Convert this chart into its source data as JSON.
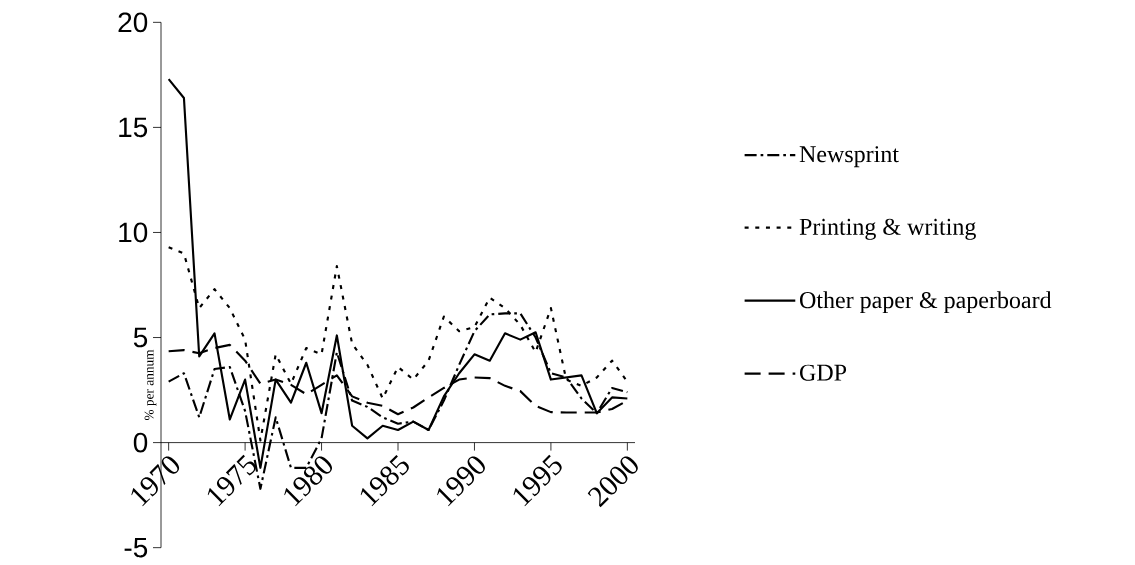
{
  "chart_data": {
    "type": "line",
    "ylabel": "% per annum",
    "x": [
      1970,
      1971,
      1972,
      1973,
      1974,
      1975,
      1976,
      1977,
      1978,
      1979,
      1980,
      1981,
      1982,
      1983,
      1984,
      1985,
      1986,
      1987,
      1988,
      1989,
      1990,
      1991,
      1992,
      1993,
      1994,
      1995,
      1996,
      1997,
      1998,
      1999,
      2000
    ],
    "series": [
      {
        "name": "Newsprint",
        "color": "#000000",
        "line_style": "dashdot",
        "values": [
          2.9,
          3.3,
          1.2,
          3.5,
          3.6,
          1.5,
          -2.2,
          1.2,
          -1.2,
          -1.2,
          0.2,
          4.3,
          2.0,
          1.7,
          1.2,
          0.9,
          1.0,
          0.6,
          2.0,
          3.7,
          5.3,
          6.1,
          6.15,
          6.15,
          5.0,
          3.3,
          3.1,
          2.1,
          1.4,
          2.6,
          2.4
        ]
      },
      {
        "name": "Printing & writing",
        "color": "#000000",
        "line_style": "dotted",
        "values": [
          9.3,
          9.0,
          6.4,
          7.3,
          6.4,
          4.9,
          0.1,
          4.2,
          2.8,
          4.5,
          4.2,
          8.4,
          4.7,
          3.7,
          2.1,
          3.6,
          3.0,
          3.9,
          6.0,
          5.3,
          5.5,
          6.9,
          6.4,
          5.6,
          4.3,
          6.4,
          3.0,
          2.7,
          3.1,
          3.9,
          2.9
        ]
      },
      {
        "name": "Other paper & paperboard",
        "color": "#000000",
        "line_style": "solid",
        "values": [
          17.3,
          16.4,
          4.1,
          5.2,
          1.1,
          3.0,
          -1.2,
          3.0,
          1.9,
          3.8,
          1.4,
          5.1,
          0.8,
          0.2,
          0.8,
          0.6,
          1.0,
          0.6,
          2.2,
          3.3,
          4.2,
          3.9,
          5.2,
          4.9,
          5.25,
          3.0,
          3.1,
          3.2,
          1.4,
          2.15,
          2.1
        ]
      },
      {
        "name": "GDP",
        "color": "#000000",
        "line_style": "dashed",
        "values": [
          4.35,
          4.4,
          4.25,
          4.5,
          4.65,
          3.9,
          2.8,
          3.0,
          2.75,
          2.3,
          2.75,
          3.2,
          2.2,
          1.9,
          1.75,
          1.35,
          1.67,
          2.15,
          2.6,
          3.0,
          3.1,
          3.07,
          2.7,
          2.45,
          1.75,
          1.45,
          1.43,
          1.43,
          1.43,
          1.6,
          2.0
        ]
      }
    ],
    "xlim": [
      1969.5,
      2000.5
    ],
    "xticks": [
      1970,
      1975,
      1980,
      1985,
      1990,
      1995,
      2000
    ],
    "ylim": [
      -5,
      20
    ],
    "yticks": [
      -5,
      0,
      5,
      10,
      15,
      20
    ],
    "grid": false,
    "legend": "right"
  }
}
